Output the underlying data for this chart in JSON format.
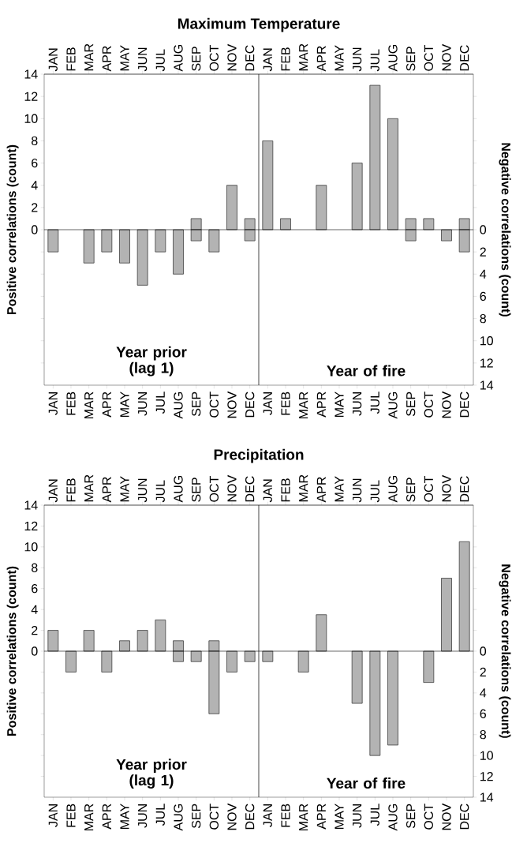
{
  "chart_data": [
    {
      "type": "bar",
      "title": "Maximum Temperature",
      "ylabel": "Positive correlations (count)",
      "annotations": [
        "Year prior (lag 1)"
      ],
      "categories": [
        "JAN",
        "FEB",
        "MAR",
        "APR",
        "MAY",
        "JUN",
        "JUL",
        "AUG",
        "SEP",
        "OCT",
        "NOV",
        "DEC"
      ],
      "series": [
        {
          "color": "#b3b3b3",
          "values": [
            null,
            null,
            null,
            null,
            null,
            null,
            null,
            null,
            1,
            null,
            4,
            1
          ]
        },
        {
          "color": "#b3b3b3",
          "values": [
            -2,
            null,
            -3,
            -2,
            -3,
            -5,
            -2,
            -4,
            -1,
            -2,
            null,
            -1
          ]
        }
      ],
      "ylim": [
        -14,
        14
      ],
      "yticks": [
        0,
        2,
        4,
        6,
        8,
        10,
        12,
        14,
        {
          "value": -2,
          "label": null
        },
        {
          "value": -4,
          "label": null
        },
        {
          "value": -6,
          "label": null
        },
        {
          "value": -8,
          "label": null
        },
        {
          "value": -10,
          "label": null
        },
        {
          "value": -12,
          "label": null
        }
      ]
    },
    {
      "type": "bar",
      "ylabel": "Negative correlations (count)",
      "annotations": [
        "Year of fire"
      ],
      "categories": [
        "JAN",
        "FEB",
        "MAR",
        "APR",
        "MAY",
        "JUN",
        "JUL",
        "AUG",
        "SEP",
        "OCT",
        "NOV",
        "DEC"
      ],
      "series": [
        {
          "color": "#b3b3b3",
          "values": [
            8,
            1,
            null,
            4,
            null,
            6,
            13,
            10,
            1,
            1,
            null,
            1
          ]
        },
        {
          "color": "#b3b3b3",
          "values": [
            null,
            null,
            null,
            null,
            null,
            null,
            null,
            null,
            -1,
            null,
            -1,
            -2
          ]
        }
      ],
      "ylim": [
        -14,
        14
      ],
      "yticks": [
        0,
        {
          "value": -2,
          "label": "2"
        },
        {
          "value": -4,
          "label": "4"
        },
        {
          "value": -6,
          "label": "6"
        },
        {
          "value": -8,
          "label": "8"
        },
        {
          "value": -10,
          "label": "10"
        },
        {
          "value": -12,
          "label": "12"
        },
        {
          "value": -14,
          "label": "14"
        },
        {
          "value": 2,
          "label": null
        },
        {
          "value": 4,
          "label": null
        },
        {
          "value": 6,
          "label": null
        },
        {
          "value": 8,
          "label": null
        },
        {
          "value": 10,
          "label": null
        },
        {
          "value": 12,
          "label": null
        }
      ]
    },
    {
      "type": "bar",
      "title": "Precipitation",
      "ylabel": "Positive correlations (count)",
      "annotations": [
        "Year prior (lag 1)"
      ],
      "categories": [
        "JAN",
        "FEB",
        "MAR",
        "APR",
        "MAY",
        "JUN",
        "JUL",
        "AUG",
        "SEP",
        "OCT",
        "NOV",
        "DEC"
      ],
      "series": [
        {
          "color": "#b3b3b3",
          "values": [
            2,
            null,
            2,
            null,
            1,
            2,
            3,
            1,
            null,
            1,
            null,
            null
          ]
        },
        {
          "color": "#b3b3b3",
          "values": [
            null,
            -2,
            null,
            -2,
            null,
            null,
            null,
            -1,
            -1,
            -6,
            -2,
            -1
          ]
        }
      ],
      "ylim": [
        -14,
        14
      ],
      "yticks": [
        0,
        2,
        4,
        6,
        8,
        10,
        12,
        14,
        {
          "value": -2,
          "label": null
        },
        {
          "value": -4,
          "label": null
        },
        {
          "value": -6,
          "label": null
        },
        {
          "value": -8,
          "label": null
        },
        {
          "value": -10,
          "label": null
        },
        {
          "value": -12,
          "label": null
        }
      ]
    },
    {
      "type": "bar",
      "ylabel": "Negative correlations (count)",
      "annotations": [
        "Year of fire"
      ],
      "categories": [
        "JAN",
        "FEB",
        "MAR",
        "APR",
        "MAY",
        "JUN",
        "JUL",
        "AUG",
        "SEP",
        "OCT",
        "NOV",
        "DEC"
      ],
      "series": [
        {
          "color": "#b3b3b3",
          "values": [
            null,
            null,
            null,
            3.5,
            null,
            null,
            null,
            null,
            null,
            null,
            7,
            10.5
          ]
        },
        {
          "color": "#b3b3b3",
          "values": [
            -1,
            null,
            -2,
            null,
            null,
            -5,
            -10,
            -9,
            null,
            -3,
            null,
            null
          ]
        }
      ],
      "ylim": [
        -14,
        14
      ],
      "yticks": [
        0,
        {
          "value": -2,
          "label": "2"
        },
        {
          "value": -4,
          "label": "4"
        },
        {
          "value": -6,
          "label": "6"
        },
        {
          "value": -8,
          "label": "8"
        },
        {
          "value": -10,
          "label": "10"
        },
        {
          "value": -12,
          "label": "12"
        },
        {
          "value": -14,
          "label": "14"
        },
        {
          "value": 2,
          "label": null
        },
        {
          "value": 4,
          "label": null
        },
        {
          "value": 6,
          "label": null
        },
        {
          "value": 8,
          "label": null
        },
        {
          "value": 10,
          "label": null
        },
        {
          "value": 12,
          "label": null
        }
      ]
    }
  ]
}
